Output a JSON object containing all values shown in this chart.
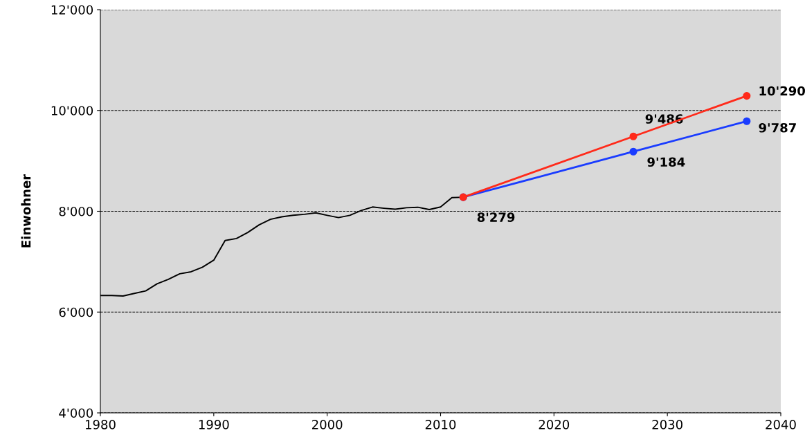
{
  "chart_data": {
    "type": "line",
    "ylabel": "Einwohner",
    "xlim": [
      1980,
      2040
    ],
    "xticks": [
      1980,
      1990,
      2000,
      2010,
      2020,
      2030,
      2040
    ],
    "ylim": [
      4000,
      12000
    ],
    "yticks": [
      {
        "value": 4000,
        "label": "4'000"
      },
      {
        "value": 6000,
        "label": "6'000"
      },
      {
        "value": 8000,
        "label": "8'000"
      },
      {
        "value": 10000,
        "label": "10'000"
      },
      {
        "value": 12000,
        "label": "12'000"
      }
    ],
    "grid": "y",
    "line_style": "solid",
    "series": [
      {
        "color": "#000000",
        "marker": "none",
        "x": [
          1980,
          1981,
          1982,
          1983,
          1984,
          1985,
          1986,
          1987,
          1988,
          1989,
          1990,
          1991,
          1992,
          1993,
          1994,
          1995,
          1996,
          1997,
          1998,
          1999,
          2000,
          2001,
          2002,
          2003,
          2004,
          2005,
          2006,
          2007,
          2008,
          2009,
          2010,
          2011,
          2012
        ],
        "values": [
          6330,
          6330,
          6320,
          6370,
          6420,
          6560,
          6650,
          6760,
          6800,
          6890,
          7030,
          7420,
          7460,
          7580,
          7730,
          7840,
          7890,
          7920,
          7940,
          7970,
          7920,
          7875,
          7920,
          8015,
          8085,
          8060,
          8040,
          8070,
          8080,
          8035,
          8085,
          8270,
          8279
        ]
      },
      {
        "color": "#ff2a1a",
        "marker": "circle",
        "x": [
          2012,
          2027,
          2037
        ],
        "values": [
          8279,
          9486,
          10290
        ],
        "value_labels": [
          "8'279",
          "9'486",
          "10'290"
        ]
      },
      {
        "color": "#1a3cff",
        "marker": "circle",
        "x": [
          2012,
          2027,
          2037
        ],
        "values": [
          8279,
          9184,
          9787
        ],
        "value_labels": [
          null,
          "9'184",
          "9'787"
        ]
      }
    ]
  }
}
